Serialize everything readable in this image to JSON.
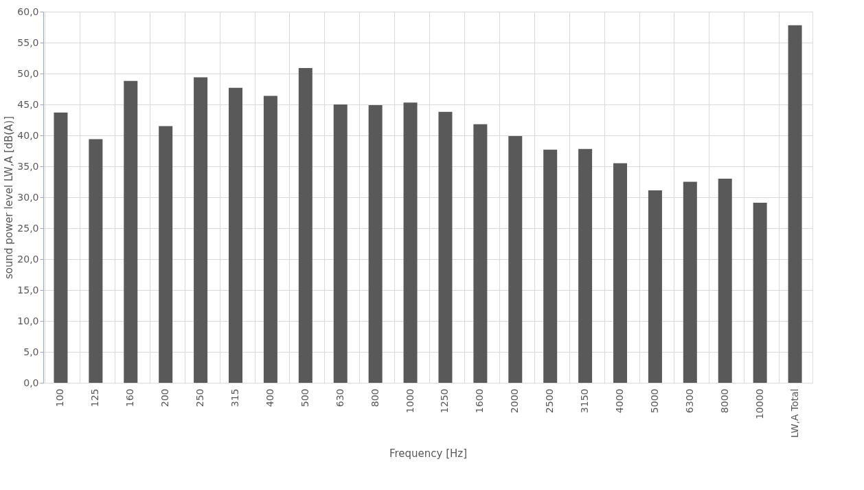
{
  "chart_data": {
    "type": "bar",
    "xlabel": "Frequency [Hz]",
    "ylabel": "sound power level LW,A [dB(A)]",
    "categories": [
      "100",
      "125",
      "160",
      "200",
      "250",
      "315",
      "400",
      "500",
      "630",
      "800",
      "1000",
      "1250",
      "1600",
      "2000",
      "2500",
      "3150",
      "4000",
      "5000",
      "6300",
      "8000",
      "10000",
      "LW,A Total"
    ],
    "values": [
      43.7,
      39.4,
      48.8,
      41.5,
      49.4,
      47.7,
      46.4,
      50.9,
      45.0,
      44.9,
      45.3,
      43.8,
      41.8,
      39.9,
      37.7,
      37.8,
      35.5,
      31.1,
      32.5,
      33.0,
      29.1,
      57.8
    ],
    "color": "#595959",
    "ylim": [
      0,
      60
    ],
    "yticks": [
      {
        "value": 0,
        "label": "0,0"
      },
      {
        "value": 5,
        "label": "5,0"
      },
      {
        "value": 10,
        "label": "10,0"
      },
      {
        "value": 15,
        "label": "15,0"
      },
      {
        "value": 20,
        "label": "20,0"
      },
      {
        "value": 25,
        "label": "25,0"
      },
      {
        "value": 30,
        "label": "30,0"
      },
      {
        "value": 35,
        "label": "35,0"
      },
      {
        "value": 40,
        "label": "40,0"
      },
      {
        "value": 45,
        "label": "45,0"
      },
      {
        "value": 50,
        "label": "50,0"
      },
      {
        "value": 55,
        "label": "55,0"
      },
      {
        "value": 60,
        "label": "60,0"
      }
    ],
    "grid": true
  }
}
